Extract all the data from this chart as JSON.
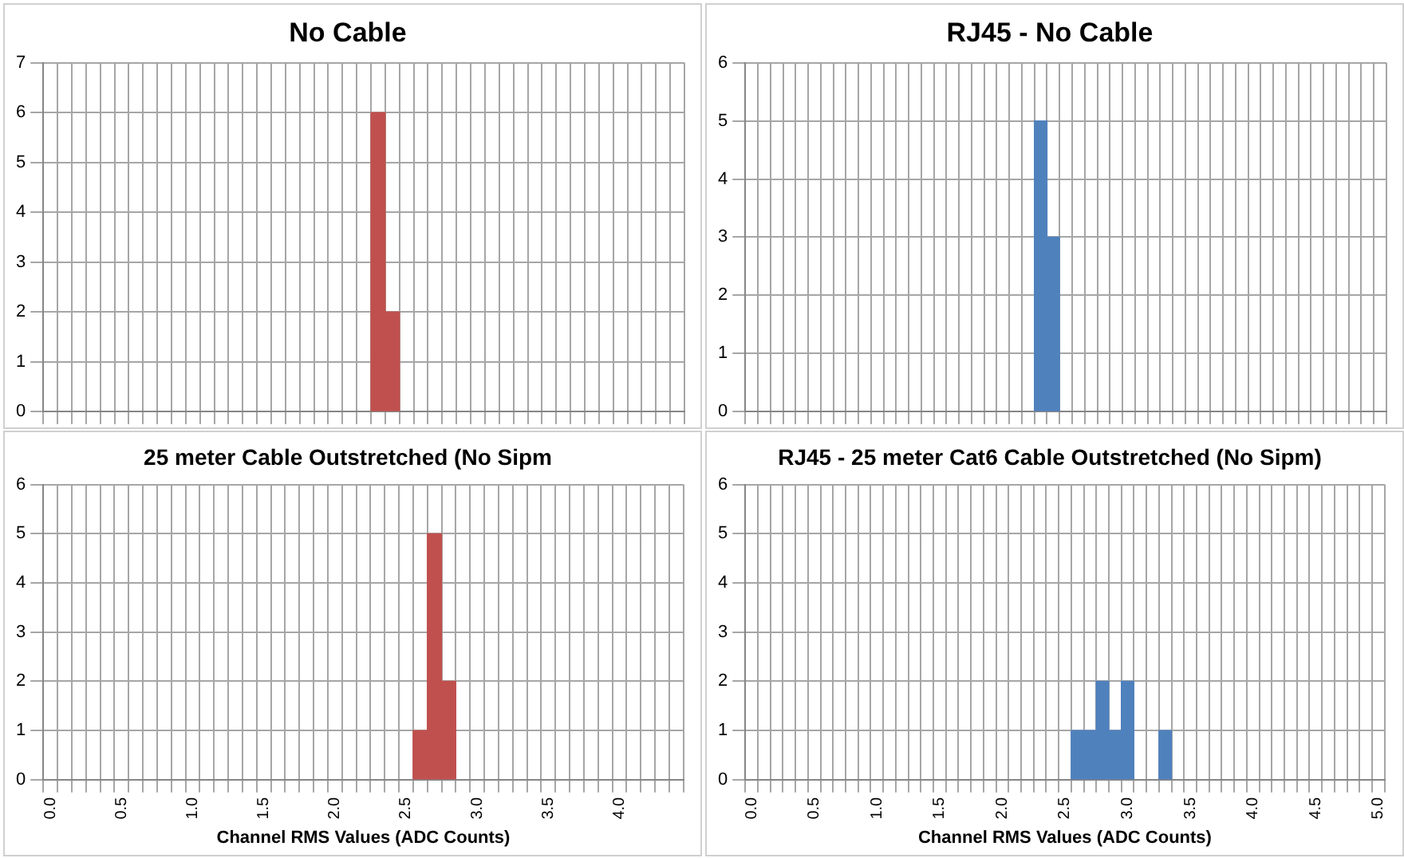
{
  "chart_data": [
    {
      "type": "bar",
      "title": "No Cable",
      "color": "#c0504d",
      "grid": true,
      "tick_labels": "y",
      "ylim": [
        0,
        7
      ],
      "yticks": [
        0,
        1,
        2,
        3,
        4,
        5,
        6,
        7
      ],
      "categories": [
        null,
        null,
        null,
        null,
        null,
        null,
        null,
        null,
        null,
        null,
        null,
        null,
        null,
        null,
        null,
        null,
        null,
        null,
        null,
        null,
        null,
        null,
        null,
        null,
        null,
        null,
        null,
        null,
        null,
        null,
        null,
        null,
        null,
        null,
        null,
        null,
        null,
        null,
        null,
        null,
        null,
        null,
        null,
        null,
        null
      ],
      "values": [
        null,
        null,
        null,
        null,
        null,
        null,
        null,
        null,
        null,
        null,
        null,
        null,
        null,
        null,
        null,
        null,
        null,
        null,
        null,
        null,
        null,
        null,
        null,
        6,
        2,
        null,
        null,
        null,
        null,
        null,
        null,
        null,
        null,
        null,
        null,
        null,
        null,
        null,
        null,
        null,
        null,
        null,
        null,
        null,
        null
      ]
    },
    {
      "type": "bar",
      "title": "RJ45 - No Cable",
      "color": "#4f81bd",
      "grid": true,
      "tick_labels": "y",
      "ylim": [
        0,
        6
      ],
      "yticks": [
        0,
        1,
        2,
        3,
        4,
        5,
        6
      ],
      "categories": [
        null,
        null,
        null,
        null,
        null,
        null,
        null,
        null,
        null,
        null,
        null,
        null,
        null,
        null,
        null,
        null,
        null,
        null,
        null,
        null,
        null,
        null,
        null,
        null,
        null,
        null,
        null,
        null,
        null,
        null,
        null,
        null,
        null,
        null,
        null,
        null,
        null,
        null,
        null,
        null,
        null,
        null,
        null,
        null,
        null,
        null,
        null,
        null,
        null,
        null,
        null
      ],
      "values": [
        null,
        null,
        null,
        null,
        null,
        null,
        null,
        null,
        null,
        null,
        null,
        null,
        null,
        null,
        null,
        null,
        null,
        null,
        null,
        null,
        null,
        null,
        null,
        5,
        3,
        null,
        null,
        null,
        null,
        null,
        null,
        null,
        null,
        null,
        null,
        null,
        null,
        null,
        null,
        null,
        null,
        null,
        null,
        null,
        null,
        null,
        null,
        null,
        null,
        null,
        null
      ]
    },
    {
      "type": "bar",
      "title": "25 meter Cable Outstretched (No Sipm",
      "xlabel": "Channel RMS Values (ADC Counts)",
      "color": "#c0504d",
      "grid": true,
      "ylim": [
        0,
        6
      ],
      "yticks": [
        0,
        1,
        2,
        3,
        4,
        5,
        6
      ],
      "categories": [
        "0.0",
        null,
        null,
        null,
        null,
        "0.5",
        null,
        null,
        null,
        null,
        "1.0",
        null,
        null,
        null,
        null,
        "1.5",
        null,
        null,
        null,
        null,
        "2.0",
        null,
        null,
        null,
        null,
        "2.5",
        null,
        null,
        null,
        null,
        "3.0",
        null,
        null,
        null,
        null,
        "3.5",
        null,
        null,
        null,
        null,
        "4.0",
        null,
        null,
        null,
        null
      ],
      "values": [
        null,
        null,
        null,
        null,
        null,
        null,
        null,
        null,
        null,
        null,
        null,
        null,
        null,
        null,
        null,
        null,
        null,
        null,
        null,
        null,
        null,
        null,
        null,
        null,
        null,
        null,
        1,
        5,
        2,
        null,
        null,
        null,
        null,
        null,
        null,
        null,
        null,
        null,
        null,
        null,
        null,
        null,
        null,
        null,
        null
      ]
    },
    {
      "type": "bar",
      "title": "RJ45 - 25 meter Cat6 Cable Outstretched (No Sipm)",
      "xlabel": "Channel RMS Values (ADC Counts)",
      "color": "#4f81bd",
      "grid": true,
      "ylim": [
        0,
        6
      ],
      "yticks": [
        0,
        1,
        2,
        3,
        4,
        5,
        6
      ],
      "categories": [
        "0.0",
        null,
        null,
        null,
        null,
        "0.5",
        null,
        null,
        null,
        null,
        "1.0",
        null,
        null,
        null,
        null,
        "1.5",
        null,
        null,
        null,
        null,
        "2.0",
        null,
        null,
        null,
        null,
        "2.5",
        null,
        null,
        null,
        null,
        "3.0",
        null,
        null,
        null,
        null,
        "3.5",
        null,
        null,
        null,
        null,
        "4.0",
        null,
        null,
        null,
        null,
        "4.5",
        null,
        null,
        null,
        null,
        "5.0"
      ],
      "values": [
        null,
        null,
        null,
        null,
        null,
        null,
        null,
        null,
        null,
        null,
        null,
        null,
        null,
        null,
        null,
        null,
        null,
        null,
        null,
        null,
        null,
        null,
        null,
        null,
        null,
        null,
        1,
        1,
        2,
        1,
        2,
        null,
        null,
        1,
        null,
        null,
        null,
        null,
        null,
        null,
        null,
        null,
        null,
        null,
        null,
        null,
        null,
        null,
        null,
        null,
        null
      ]
    }
  ]
}
